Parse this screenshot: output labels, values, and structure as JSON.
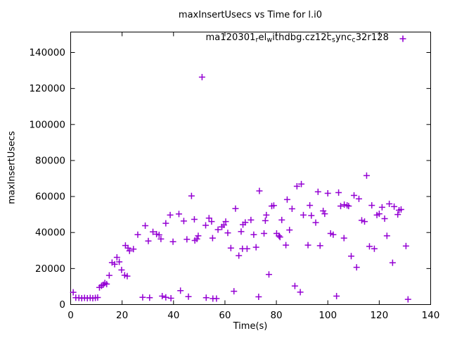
{
  "window": {
    "background": "#ffffff"
  },
  "chart_data": {
    "type": "scatter",
    "title": "maxInsertUsecs vs Time for l.i0",
    "xlabel": "Time(s)",
    "ylabel": "maxInsertUsecs",
    "xlim": [
      0,
      140
    ],
    "ylim": [
      0,
      151000
    ],
    "x_ticks": [
      0,
      20,
      40,
      60,
      80,
      100,
      120,
      140
    ],
    "y_ticks": [
      0,
      20000,
      40000,
      60000,
      80000,
      100000,
      120000,
      140000
    ],
    "grid": false,
    "legend_position": "top-right-inside",
    "marker": "plus",
    "marker_color": "#9400D3",
    "axis_color": "#000000",
    "series": [
      {
        "name": "ma120301_rel_withdbg.cz12c_sync_c32r128",
        "name_segments": [
          {
            "text": "ma120301"
          },
          {
            "sub": "r"
          },
          {
            "text": "el"
          },
          {
            "sub": "w"
          },
          {
            "text": "ithdbg.cz12c"
          },
          {
            "sub": "s"
          },
          {
            "text": "ync"
          },
          {
            "sub": "c"
          },
          {
            "text": "32r128"
          }
        ],
        "points": [
          [
            1,
            6800
          ],
          [
            2,
            3800
          ],
          [
            3.2,
            3700
          ],
          [
            4.3,
            3500
          ],
          [
            5.4,
            3700
          ],
          [
            6.5,
            3500
          ],
          [
            7.6,
            3700
          ],
          [
            8.6,
            3500
          ],
          [
            9.6,
            3700
          ],
          [
            10.5,
            3900
          ],
          [
            11.2,
            9500
          ],
          [
            12,
            10400
          ],
          [
            12.7,
            11000
          ],
          [
            13.3,
            12000
          ],
          [
            14,
            11400
          ],
          [
            15,
            16200
          ],
          [
            16.1,
            23300
          ],
          [
            17.1,
            22400
          ],
          [
            18,
            26200
          ],
          [
            18.9,
            23700
          ],
          [
            19.8,
            19200
          ],
          [
            21,
            16300
          ],
          [
            22,
            15800
          ],
          [
            21.3,
            32800
          ],
          [
            22.3,
            31400
          ],
          [
            22.9,
            29800
          ],
          [
            24.4,
            30800
          ],
          [
            26.1,
            38800
          ],
          [
            28,
            4000
          ],
          [
            30.7,
            3800
          ],
          [
            35.6,
            4700
          ],
          [
            37,
            4000
          ],
          [
            39,
            3500
          ],
          [
            42.7,
            7700
          ],
          [
            45.8,
            4400
          ],
          [
            52.7,
            3800
          ],
          [
            55.3,
            3300
          ],
          [
            56.7,
            3300
          ],
          [
            63.5,
            7400
          ],
          [
            73.1,
            4300
          ],
          [
            87.2,
            10300
          ],
          [
            89.3,
            6900
          ],
          [
            103.4,
            4700
          ],
          [
            131.2,
            2900
          ],
          [
            29,
            43800
          ],
          [
            30.2,
            35300
          ],
          [
            32,
            40400
          ],
          [
            33.4,
            39100
          ],
          [
            34.4,
            38700
          ],
          [
            35.1,
            36400
          ],
          [
            37,
            45100
          ],
          [
            38.7,
            49700
          ],
          [
            39.8,
            34900
          ],
          [
            42.1,
            50300
          ],
          [
            44,
            46400
          ],
          [
            45.2,
            36200
          ],
          [
            47,
            60300
          ],
          [
            48.1,
            47300
          ],
          [
            48.3,
            35600
          ],
          [
            49.1,
            36400
          ],
          [
            49.6,
            38200
          ],
          [
            51.1,
            126300
          ],
          [
            52.5,
            44000
          ],
          [
            53.8,
            48000
          ],
          [
            54.8,
            46100
          ],
          [
            55.2,
            36900
          ],
          [
            57.3,
            41600
          ],
          [
            58.8,
            43100
          ],
          [
            59.6,
            44200
          ],
          [
            60.3,
            46100
          ],
          [
            61.1,
            39800
          ],
          [
            62.3,
            31400
          ],
          [
            64.1,
            53300
          ],
          [
            65.4,
            27200
          ],
          [
            66.3,
            40500
          ],
          [
            66.8,
            31000
          ],
          [
            67,
            44400
          ],
          [
            67.9,
            45600
          ],
          [
            68.6,
            31000
          ],
          [
            70.1,
            47000
          ],
          [
            71.2,
            38800
          ],
          [
            72.1,
            31800
          ],
          [
            73.4,
            63100
          ],
          [
            75.2,
            39500
          ],
          [
            75.7,
            46600
          ],
          [
            76.1,
            49700
          ],
          [
            77.1,
            16700
          ],
          [
            78.2,
            54700
          ],
          [
            79,
            55000
          ],
          [
            80.1,
            39500
          ],
          [
            81,
            38200
          ],
          [
            81.4,
            37500
          ],
          [
            82.1,
            47000
          ],
          [
            83.7,
            33000
          ],
          [
            84.2,
            58300
          ],
          [
            85.1,
            41400
          ],
          [
            86.1,
            53200
          ],
          [
            88,
            65700
          ],
          [
            89.7,
            66900
          ],
          [
            90.5,
            49700
          ],
          [
            92.3,
            33000
          ],
          [
            93,
            55100
          ],
          [
            93.6,
            49400
          ],
          [
            95.3,
            45500
          ],
          [
            96.2,
            62600
          ],
          [
            97,
            32700
          ],
          [
            98.2,
            52000
          ],
          [
            98.8,
            50400
          ],
          [
            100,
            61800
          ],
          [
            101.1,
            39500
          ],
          [
            102.1,
            38800
          ],
          [
            104.2,
            62200
          ],
          [
            105,
            54700
          ],
          [
            106.3,
            36900
          ],
          [
            106.4,
            55500
          ],
          [
            107.5,
            55100
          ],
          [
            108.1,
            54700
          ],
          [
            109.1,
            26900
          ],
          [
            110.2,
            60600
          ],
          [
            111.2,
            20700
          ],
          [
            112.1,
            58700
          ],
          [
            113.2,
            46800
          ],
          [
            114.3,
            46100
          ],
          [
            115.1,
            71600
          ],
          [
            116.2,
            32300
          ],
          [
            117.1,
            55100
          ],
          [
            118.1,
            31000
          ],
          [
            119.1,
            49700
          ],
          [
            120,
            50400
          ],
          [
            121.1,
            54000
          ],
          [
            122.1,
            47700
          ],
          [
            123,
            38200
          ],
          [
            123.9,
            55900
          ],
          [
            125.2,
            23200
          ],
          [
            125.8,
            54400
          ],
          [
            127.2,
            50000
          ],
          [
            127.7,
            52400
          ],
          [
            128.5,
            52800
          ],
          [
            130.4,
            32500
          ]
        ]
      }
    ]
  }
}
